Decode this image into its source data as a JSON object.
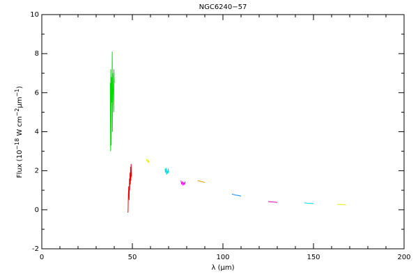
{
  "chart_data": {
    "type": "line",
    "title": "NGC6240−57",
    "xlabel": "λ (μm)",
    "ylabel_parts": [
      {
        "text": "Flux (10"
      },
      {
        "text": "−18",
        "sup": true
      },
      {
        "text": " W cm"
      },
      {
        "text": "−2",
        "sup": true
      },
      {
        "text": "μm"
      },
      {
        "text": "−1",
        "sup": true
      },
      {
        "text": ")"
      }
    ],
    "xlim": [
      0,
      200
    ],
    "xticks": [
      0,
      50,
      100,
      150,
      200
    ],
    "xminorticks": [
      10,
      20,
      30,
      40,
      60,
      70,
      80,
      90,
      110,
      120,
      130,
      140,
      160,
      170,
      180,
      190
    ],
    "ylim": [
      -2,
      10
    ],
    "yticks": [
      -2,
      0,
      2,
      4,
      6,
      8,
      10
    ],
    "yminorticks": [
      -1,
      1,
      3,
      5,
      7,
      9
    ],
    "series": [
      {
        "color": "#00dd00",
        "x": [
          37.8,
          38.0,
          38.1,
          38.3,
          38.5,
          38.7,
          38.9,
          39.0,
          39.2,
          39.4,
          39.5,
          39.7,
          39.8,
          40.0
        ],
        "values": [
          6.5,
          3.0,
          7.2,
          3.3,
          6.8,
          5.5,
          8.1,
          4.0,
          7.0,
          6.0,
          6.2,
          5.0,
          7.2,
          6.5
        ]
      },
      {
        "color": "#ee0000",
        "x": [
          47.6,
          47.8,
          48.0,
          48.2,
          48.4,
          48.5,
          48.7,
          48.9,
          49.0,
          49.2,
          49.3,
          49.5
        ],
        "values": [
          -0.15,
          0.8,
          1.2,
          0.5,
          1.6,
          1.0,
          1.9,
          1.3,
          2.2,
          1.5,
          2.35,
          1.7
        ]
      },
      {
        "color": "#eeee00",
        "x": [
          57.8,
          58.1,
          58.4,
          58.7,
          59.0,
          59.3
        ],
        "values": [
          2.6,
          2.5,
          2.55,
          2.45,
          2.5,
          2.4
        ]
      },
      {
        "color": "#00dddd",
        "x": [
          68.0,
          68.3,
          68.6,
          68.9,
          69.2,
          69.5,
          69.8,
          70.1
        ],
        "values": [
          2.1,
          1.9,
          2.15,
          1.8,
          2.0,
          1.85,
          2.1,
          1.9
        ]
      },
      {
        "color": "#ee00ee",
        "x": [
          76.8,
          77.2,
          77.6,
          78.0,
          78.4,
          78.8,
          79.2
        ],
        "values": [
          1.5,
          1.3,
          1.45,
          1.25,
          1.4,
          1.3,
          1.45
        ]
      },
      {
        "color": "#ee9900",
        "x": [
          86.0,
          86.8,
          87.6,
          88.4,
          89.2,
          90.0
        ],
        "values": [
          1.5,
          1.48,
          1.45,
          1.44,
          1.42,
          1.4
        ]
      },
      {
        "color": "#0088ee",
        "x": [
          105.0,
          106.0,
          107.0,
          108.0,
          109.0,
          110.0
        ],
        "values": [
          0.8,
          0.78,
          0.75,
          0.74,
          0.72,
          0.7
        ]
      },
      {
        "color": "#ee00aa",
        "x": [
          125.0,
          126.2,
          127.5,
          128.8,
          130.0
        ],
        "values": [
          0.42,
          0.41,
          0.4,
          0.39,
          0.38
        ]
      },
      {
        "color": "#00dddd",
        "x": [
          145.0,
          146.2,
          147.5,
          148.8,
          150.0
        ],
        "values": [
          0.35,
          0.34,
          0.33,
          0.33,
          0.32
        ]
      },
      {
        "color": "#eeee00",
        "x": [
          163.0,
          164.2,
          165.5,
          166.8,
          168.0
        ],
        "values": [
          0.28,
          0.27,
          0.27,
          0.26,
          0.25
        ]
      }
    ]
  }
}
